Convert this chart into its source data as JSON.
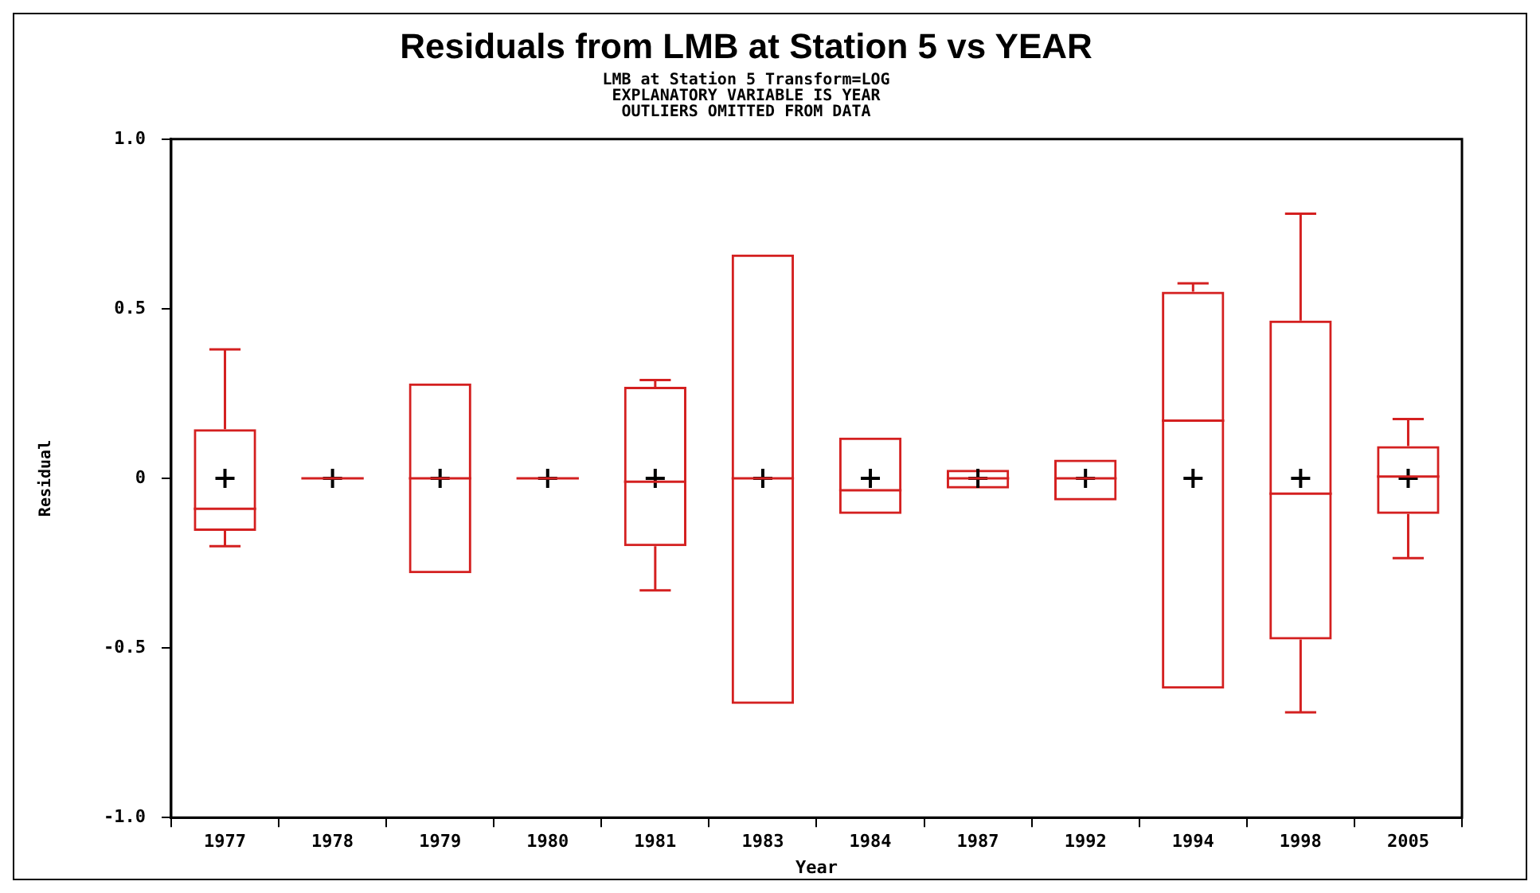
{
  "chart_data": {
    "type": "box",
    "title": "Residuals from LMB at Station 5 vs YEAR",
    "subtitle": "LMB at Station 5 Transform=LOG\nEXPLANATORY VARIABLE IS YEAR\nOUTLIERS OMITTED FROM DATA",
    "xlabel": "Year",
    "ylabel": "Residual",
    "categories": [
      "1977",
      "1978",
      "1979",
      "1980",
      "1981",
      "1983",
      "1984",
      "1987",
      "1992",
      "1994",
      "1998",
      "2005"
    ],
    "color": "#d42020",
    "boxes": [
      {
        "low": -0.2,
        "q1": -0.155,
        "median": -0.09,
        "q3": 0.145,
        "high": 0.38,
        "mean": 0
      },
      {
        "low": 0,
        "q1": 0,
        "median": 0,
        "q3": 0,
        "high": 0,
        "mean": 0
      },
      {
        "low": -0.28,
        "q1": -0.28,
        "median": 0,
        "q3": 0.28,
        "high": 0.28,
        "mean": 0
      },
      {
        "low": 0,
        "q1": 0,
        "median": 0,
        "q3": 0,
        "high": 0,
        "mean": 0
      },
      {
        "low": -0.33,
        "q1": -0.2,
        "median": -0.01,
        "q3": 0.27,
        "high": 0.29,
        "mean": 0
      },
      {
        "low": -0.665,
        "q1": -0.665,
        "median": 0,
        "q3": 0.66,
        "high": 0.66,
        "mean": 0
      },
      {
        "low": -0.105,
        "q1": -0.105,
        "median": -0.035,
        "q3": 0.12,
        "high": 0.12,
        "mean": 0
      },
      {
        "low": -0.03,
        "q1": -0.03,
        "median": 0,
        "q3": 0.025,
        "high": 0.025,
        "mean": 0
      },
      {
        "low": -0.065,
        "q1": -0.065,
        "median": 0,
        "q3": 0.055,
        "high": 0.055,
        "mean": 0
      },
      {
        "low": -0.62,
        "q1": -0.62,
        "median": 0.17,
        "q3": 0.55,
        "high": 0.575,
        "mean": 0
      },
      {
        "low": -0.69,
        "q1": -0.475,
        "median": -0.045,
        "q3": 0.465,
        "high": 0.78,
        "mean": 0
      },
      {
        "low": -0.235,
        "q1": -0.105,
        "median": 0.005,
        "q3": 0.095,
        "high": 0.175,
        "mean": 0
      }
    ],
    "ylim": [
      -1,
      1
    ],
    "yticks": [
      {
        "value": 1,
        "label": "1.0"
      },
      {
        "value": 0.5,
        "label": "0.5"
      },
      0,
      {
        "value": -0.5,
        "label": "-0.5"
      },
      {
        "value": -1,
        "label": "-1.0"
      }
    ]
  }
}
